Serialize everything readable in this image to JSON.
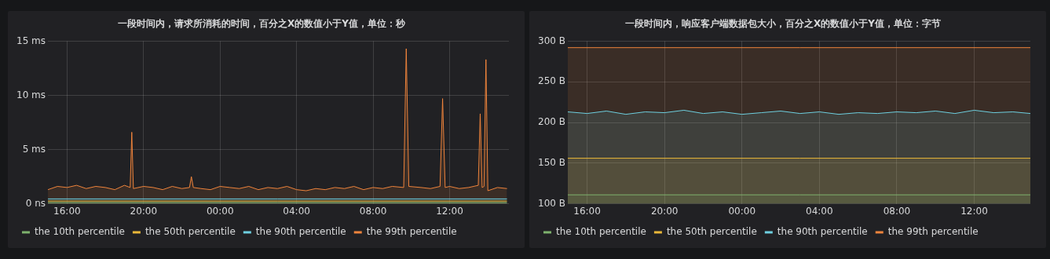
{
  "chart_data": [
    {
      "type": "area",
      "title": "一段时间内，请求所消耗的时间，百分之X的数值小于Y值，单位：秒",
      "xlim": [
        "--01-01T15:00",
        "--01-02T15:06"
      ],
      "xticks": [
        {
          "value": "--01-01T16:00",
          "label": "16:00"
        },
        {
          "value": "--01-01T20:00",
          "label": "20:00"
        },
        {
          "value": "--01-02T00:00",
          "label": "00:00"
        },
        {
          "value": "--01-02T04:00",
          "label": "04:00"
        },
        {
          "value": "--01-02T08:00",
          "label": "08:00"
        },
        {
          "value": "--01-02T12:00",
          "label": "12:00"
        }
      ],
      "ylim": [
        0,
        15
      ],
      "yticks": [
        {
          "value": 0,
          "label": "0 ns"
        },
        {
          "value": 5,
          "label": "5 ms"
        },
        {
          "value": 10,
          "label": "10 ms"
        },
        {
          "value": 15,
          "label": "15 ms"
        }
      ],
      "grid": true,
      "legend": "bottom left",
      "marker": "none",
      "line_style": "solid",
      "series": [
        {
          "name": "the 10th percentile",
          "color": "#7eb26d",
          "x": [
            "--01-01T15:00",
            "--01-02T03:00",
            "--01-02T15:00"
          ],
          "values": [
            0.1,
            0.1,
            0.1
          ]
        },
        {
          "name": "the 50th percentile",
          "color": "#eab839",
          "x": [
            "--01-01T15:00",
            "--01-02T03:00",
            "--01-02T15:00"
          ],
          "values": [
            0.25,
            0.25,
            0.25
          ]
        },
        {
          "name": "the 90th percentile",
          "color": "#6ed0e0",
          "x": [
            "--01-01T15:00",
            "--01-02T03:00",
            "--01-02T15:00"
          ],
          "values": [
            0.45,
            0.45,
            0.45
          ]
        },
        {
          "name": "the 99th percentile",
          "color": "#ef843c",
          "x": [
            "--01-01T15:00",
            "--01-01T15:30",
            "--01-01T16:00",
            "--01-01T16:30",
            "--01-01T17:00",
            "--01-01T17:30",
            "--01-01T18:00",
            "--01-01T18:30",
            "--01-01T19:00",
            "--01-01T19:18",
            "--01-01T19:23",
            "--01-01T19:28",
            "--01-01T20:00",
            "--01-01T20:30",
            "--01-01T21:00",
            "--01-01T21:30",
            "--01-01T22:00",
            "--01-01T22:24",
            "--01-01T22:30",
            "--01-01T22:36",
            "--01-01T23:00",
            "--01-01T23:30",
            "--01-02T00:00",
            "--01-02T00:30",
            "--01-02T01:00",
            "--01-02T01:30",
            "--01-02T02:00",
            "--01-02T02:30",
            "--01-02T03:00",
            "--01-02T03:30",
            "--01-02T04:00",
            "--01-02T04:30",
            "--01-02T05:00",
            "--01-02T05:30",
            "--01-02T06:00",
            "--01-02T06:30",
            "--01-02T07:00",
            "--01-02T07:30",
            "--01-02T08:00",
            "--01-02T08:30",
            "--01-02T09:00",
            "--01-02T09:36",
            "--01-02T09:44",
            "--01-02T09:52",
            "--01-02T10:30",
            "--01-02T11:00",
            "--01-02T11:30",
            "--01-02T11:38",
            "--01-02T11:46",
            "--01-02T12:00",
            "--01-02T12:30",
            "--01-02T13:00",
            "--01-02T13:30",
            "--01-02T13:36",
            "--01-02T13:42",
            "--01-02T13:48",
            "--01-02T13:54",
            "--01-02T14:00",
            "--01-02T14:30",
            "--01-02T15:00"
          ],
          "values": [
            1.3,
            1.6,
            1.5,
            1.7,
            1.4,
            1.6,
            1.5,
            1.3,
            1.7,
            1.5,
            6.6,
            1.4,
            1.6,
            1.5,
            1.3,
            1.6,
            1.4,
            1.5,
            2.5,
            1.5,
            1.4,
            1.3,
            1.6,
            1.5,
            1.4,
            1.6,
            1.3,
            1.5,
            1.4,
            1.6,
            1.3,
            1.2,
            1.4,
            1.3,
            1.5,
            1.4,
            1.6,
            1.3,
            1.5,
            1.4,
            1.6,
            1.5,
            14.3,
            1.6,
            1.5,
            1.4,
            1.6,
            9.7,
            1.5,
            1.6,
            1.4,
            1.5,
            1.7,
            8.3,
            1.5,
            1.6,
            13.3,
            1.2,
            1.5,
            1.4
          ]
        }
      ]
    },
    {
      "type": "area",
      "title": "一段时间内，响应客户端数据包大小，百分之X的数值小于Y值，单位：字节",
      "xlim": [
        "--01-01T15:00",
        "--01-02T14:54"
      ],
      "xticks": [
        {
          "value": "--01-01T16:00",
          "label": "16:00"
        },
        {
          "value": "--01-01T20:00",
          "label": "20:00"
        },
        {
          "value": "--01-02T00:00",
          "label": "00:00"
        },
        {
          "value": "--01-02T04:00",
          "label": "04:00"
        },
        {
          "value": "--01-02T08:00",
          "label": "08:00"
        },
        {
          "value": "--01-02T12:00",
          "label": "12:00"
        }
      ],
      "ylim": [
        100,
        300
      ],
      "yticks": [
        {
          "value": 100,
          "label": "100 B"
        },
        {
          "value": 150,
          "label": "150 B"
        },
        {
          "value": 200,
          "label": "200 B"
        },
        {
          "value": 250,
          "label": "250 B"
        },
        {
          "value": 300,
          "label": "300 B"
        }
      ],
      "grid": true,
      "legend": "bottom left",
      "marker": "none",
      "line_style": "solid",
      "series": [
        {
          "name": "the 10th percentile",
          "color": "#7eb26d",
          "x": [
            "--01-01T15:00",
            "--01-02T03:00",
            "--01-02T14:54"
          ],
          "values": [
            111,
            111,
            111
          ]
        },
        {
          "name": "the 50th percentile",
          "color": "#eab839",
          "x": [
            "--01-01T15:00",
            "--01-02T03:00",
            "--01-02T14:54"
          ],
          "values": [
            156,
            156,
            156
          ]
        },
        {
          "name": "the 90th percentile",
          "color": "#6ed0e0",
          "x": [
            "--01-01T15:00",
            "--01-01T16:00",
            "--01-01T17:00",
            "--01-01T18:00",
            "--01-01T19:00",
            "--01-01T20:00",
            "--01-01T21:00",
            "--01-01T22:00",
            "--01-01T23:00",
            "--01-02T00:00",
            "--01-02T01:00",
            "--01-02T02:00",
            "--01-02T03:00",
            "--01-02T04:00",
            "--01-02T05:00",
            "--01-02T06:00",
            "--01-02T07:00",
            "--01-02T08:00",
            "--01-02T09:00",
            "--01-02T10:00",
            "--01-02T11:00",
            "--01-02T12:00",
            "--01-02T13:00",
            "--01-02T14:00",
            "--01-02T14:54"
          ],
          "values": [
            213,
            211,
            214,
            210,
            213,
            212,
            215,
            211,
            213,
            210,
            212,
            214,
            211,
            213,
            210,
            212,
            211,
            213,
            212,
            214,
            211,
            215,
            212,
            213,
            211
          ]
        },
        {
          "name": "the 99th percentile",
          "color": "#ef843c",
          "x": [
            "--01-01T15:00",
            "--01-02T03:00",
            "--01-02T14:54"
          ],
          "values": [
            292,
            292,
            292
          ]
        }
      ]
    }
  ]
}
